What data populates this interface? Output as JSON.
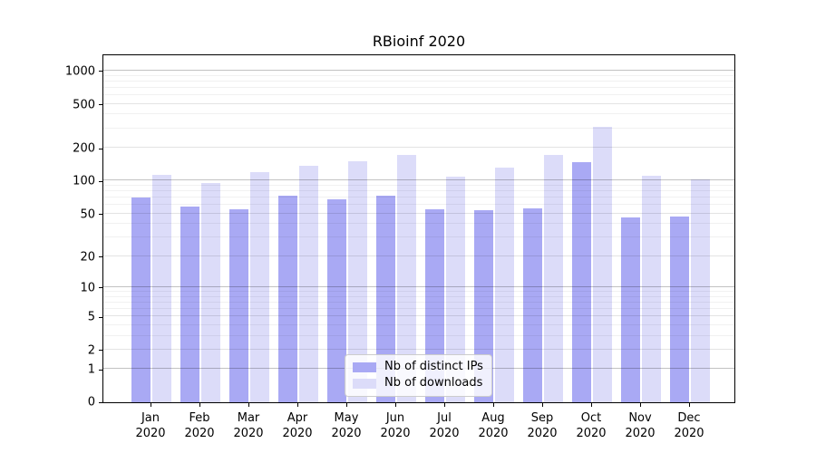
{
  "title": "RBioinf 2020",
  "legend": {
    "items": [
      {
        "label": "Nb of distinct IPs",
        "color": "#a9a9f4"
      },
      {
        "label": "Nb of downloads",
        "color": "#dcdcf9"
      }
    ]
  },
  "y_axis": {
    "tick_labels": [
      "0",
      "1",
      "2",
      "5",
      "10",
      "20",
      "50",
      "100",
      "200",
      "500",
      "1000"
    ],
    "tick_values": [
      0,
      1,
      2,
      5,
      10,
      20,
      50,
      100,
      200,
      500,
      1000
    ]
  },
  "x_axis": {
    "months": [
      {
        "line1": "Jan",
        "line2": "2020"
      },
      {
        "line1": "Feb",
        "line2": "2020"
      },
      {
        "line1": "Mar",
        "line2": "2020"
      },
      {
        "line1": "Apr",
        "line2": "2020"
      },
      {
        "line1": "May",
        "line2": "2020"
      },
      {
        "line1": "Jun",
        "line2": "2020"
      },
      {
        "line1": "Jul",
        "line2": "2020"
      },
      {
        "line1": "Aug",
        "line2": "2020"
      },
      {
        "line1": "Sep",
        "line2": "2020"
      },
      {
        "line1": "Oct",
        "line2": "2020"
      },
      {
        "line1": "Nov",
        "line2": "2020"
      },
      {
        "line1": "Dec",
        "line2": "2020"
      }
    ]
  },
  "colors": {
    "distinct_ips": "#a9a9f4",
    "downloads": "#dcdcf9",
    "grid_major": "rgba(0,0,0,0.24)",
    "grid_mid": "rgba(0,0,0,0.11)",
    "grid_minor": "rgba(0,0,0,0.055)",
    "axis": "#000000"
  },
  "chart_data": {
    "type": "bar",
    "title": "RBioinf 2020",
    "categories": [
      "Jan 2020",
      "Feb 2020",
      "Mar 2020",
      "Apr 2020",
      "May 2020",
      "Jun 2020",
      "Jul 2020",
      "Aug 2020",
      "Sep 2020",
      "Oct 2020",
      "Nov 2020",
      "Dec 2020"
    ],
    "series": [
      {
        "name": "Nb of distinct IPs",
        "values": [
          70,
          58,
          55,
          73,
          67,
          73,
          55,
          54,
          56,
          148,
          46,
          47
        ]
      },
      {
        "name": "Nb of downloads",
        "values": [
          113,
          95,
          120,
          136,
          150,
          172,
          108,
          131,
          172,
          310,
          110,
          102
        ]
      }
    ],
    "xlabel": "",
    "ylabel": "",
    "y_scale": "log1p",
    "y_ticks": [
      0,
      1,
      2,
      5,
      10,
      20,
      50,
      100,
      200,
      500,
      1000
    ],
    "ylim": [
      0,
      1430
    ],
    "grid": "on",
    "legend_position": "inside lower center"
  }
}
